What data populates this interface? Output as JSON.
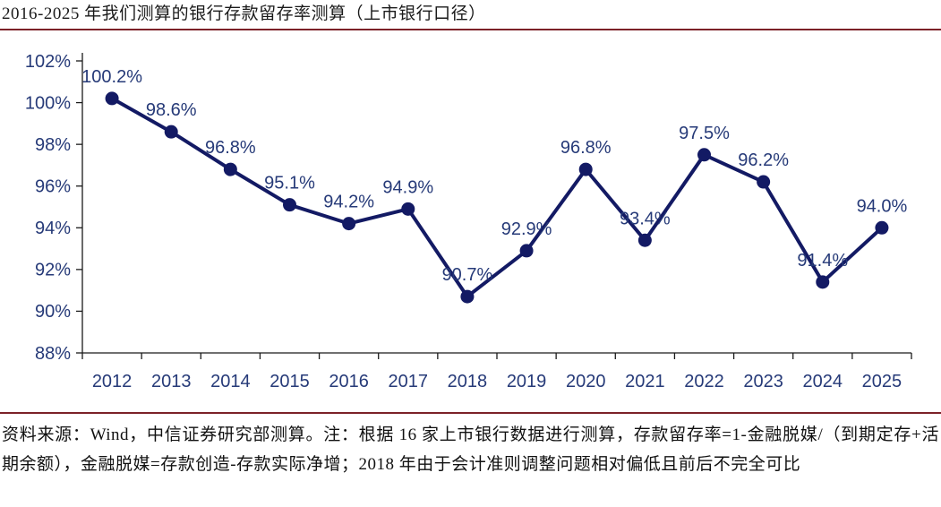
{
  "header": {
    "title": "2016-2025 年我们测算的银行存款留存率测算（上市银行口径）"
  },
  "footer": {
    "note": "资料来源：Wind，中信证券研究部测算。注：根据 16 家上市银行数据进行测算，存款留存率=1-金融脱媒/（到期定存+活期余额），金融脱媒=存款创造-存款实际净增；2018 年由于会计准则调整问题相对偏低且前后不完全可比"
  },
  "colors": {
    "line": "#131a64",
    "marker": "#131a64",
    "chart_text": "#263a78",
    "axis": "#1a1a1a",
    "rule": "#7c2128",
    "title_text": "#1a1a1a"
  },
  "chart_data": {
    "type": "line",
    "categories": [
      "2012",
      "2013",
      "2014",
      "2015",
      "2016",
      "2017",
      "2018",
      "2019",
      "2020",
      "2021",
      "2022",
      "2023",
      "2024",
      "2025"
    ],
    "values": [
      100.2,
      98.6,
      96.8,
      95.1,
      94.2,
      94.9,
      90.7,
      92.9,
      96.8,
      93.4,
      97.5,
      96.2,
      91.4,
      94.0
    ],
    "labels": [
      "100.2%",
      "98.6%",
      "96.8%",
      "95.1%",
      "94.2%",
      "94.9%",
      "90.7%",
      "92.9%",
      "96.8%",
      "93.4%",
      "97.5%",
      "96.2%",
      "91.4%",
      "94.0%"
    ],
    "title": "2016-2025 年我们测算的银行存款留存率测算（上市银行口径）",
    "xlabel": "",
    "ylabel": "",
    "ylim": [
      88,
      102
    ],
    "ytick_step": 2,
    "ytick_suffix": "%",
    "grid": false,
    "legend": "none",
    "marker": "circle"
  }
}
